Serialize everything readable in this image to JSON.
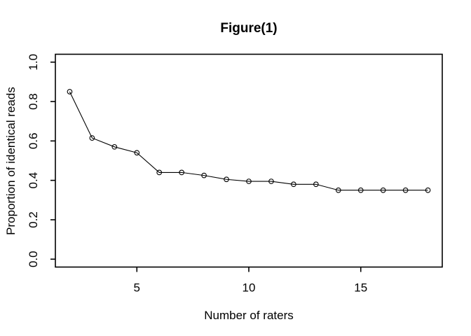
{
  "chart_data": {
    "type": "line",
    "title": "Figure(1)",
    "xlabel": "Number of raters",
    "ylabel": "Proportion of identical reads",
    "x": [
      2,
      3,
      4,
      5,
      6,
      7,
      8,
      9,
      10,
      11,
      12,
      13,
      14,
      15,
      16,
      17,
      18
    ],
    "y": [
      0.85,
      0.615,
      0.57,
      0.54,
      0.44,
      0.44,
      0.425,
      0.405,
      0.395,
      0.395,
      0.38,
      0.38,
      0.35,
      0.35,
      0.35,
      0.35,
      0.35
    ],
    "x_ticks": [
      5,
      10,
      15
    ],
    "x_tick_labels": [
      "5",
      "10",
      "15"
    ],
    "y_ticks": [
      0.0,
      0.2,
      0.4,
      0.6,
      0.8,
      1.0
    ],
    "y_tick_labels": [
      "0.0",
      "0.2",
      "0.4",
      "0.6",
      "0.8",
      "1.0"
    ],
    "xlim": [
      1.36,
      18.64
    ],
    "ylim": [
      -0.04,
      1.04
    ],
    "grid": false,
    "legend": false,
    "marker": "open-circle",
    "line_style": "solid",
    "colors": {
      "foreground": "#000000",
      "background": "#ffffff"
    }
  }
}
